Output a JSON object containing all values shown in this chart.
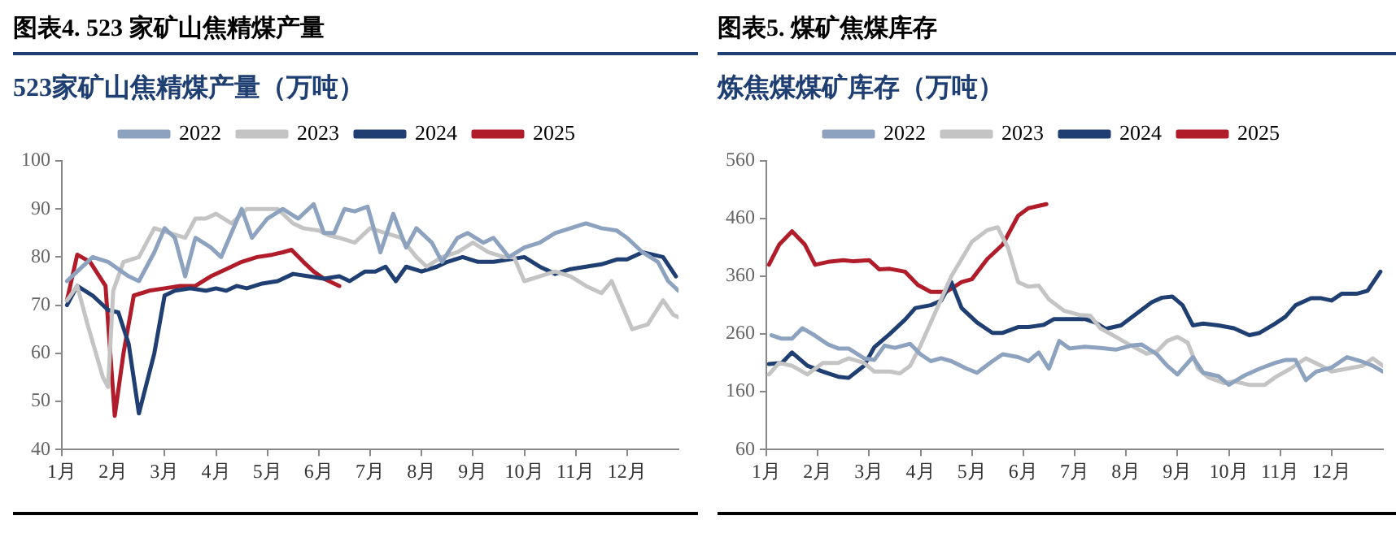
{
  "chart_data": [
    {
      "type": "line",
      "title": "图表4.  523 家矿山焦精煤产量",
      "subtitle": "523家矿山焦精煤产量（万吨）",
      "legend": "top",
      "grid": false,
      "marker": "none",
      "line_style": "solid",
      "xlim": [
        1,
        13
      ],
      "xticks": [
        {
          "value": 1,
          "label": "1月"
        },
        {
          "value": 2,
          "label": "2月"
        },
        {
          "value": 3,
          "label": "3月"
        },
        {
          "value": 4,
          "label": "4月"
        },
        {
          "value": 5,
          "label": "5月"
        },
        {
          "value": 6,
          "label": "6月"
        },
        {
          "value": 7,
          "label": "7月"
        },
        {
          "value": 8,
          "label": "8月"
        },
        {
          "value": 9,
          "label": "9月"
        },
        {
          "value": 10,
          "label": "10月"
        },
        {
          "value": 11,
          "label": "11月"
        },
        {
          "value": 12,
          "label": "12月"
        }
      ],
      "ylim": [
        40,
        100
      ],
      "yticks": [
        40,
        50,
        60,
        70,
        80,
        90,
        100
      ],
      "series": [
        {
          "name": "2022",
          "color": "#8da2bf",
          "x": [
            1.1,
            1.3,
            1.6,
            1.9,
            2.3,
            2.5,
            2.8,
            3.0,
            3.2,
            3.4,
            3.6,
            3.9,
            4.1,
            4.3,
            4.5,
            4.7,
            5.0,
            5.3,
            5.6,
            5.9,
            6.1,
            6.3,
            6.5,
            6.7,
            6.95,
            7.2,
            7.45,
            7.7,
            7.9,
            8.2,
            8.4,
            8.7,
            8.9,
            9.2,
            9.4,
            9.7,
            10.0,
            10.3,
            10.6,
            10.9,
            11.2,
            11.5,
            11.8,
            12.0,
            12.3,
            12.6,
            12.8,
            13.0
          ],
          "values": [
            75,
            77,
            80,
            79,
            76,
            75,
            81,
            86,
            84,
            76,
            84,
            82,
            80,
            85,
            90,
            84,
            88,
            90,
            88,
            91,
            85,
            85,
            90,
            89.5,
            90.5,
            81,
            89,
            82,
            86,
            83,
            79,
            84,
            85,
            83,
            84,
            80,
            82,
            83,
            85,
            86,
            87,
            86,
            85.5,
            84,
            81,
            79,
            75,
            73
          ]
        },
        {
          "name": "2023",
          "color": "#c4c4c4",
          "x": [
            1.1,
            1.3,
            1.5,
            1.8,
            1.9,
            2.0,
            2.2,
            2.5,
            2.8,
            3.1,
            3.4,
            3.6,
            3.8,
            4.0,
            4.3,
            4.6,
            4.9,
            5.2,
            5.5,
            5.7,
            6.0,
            6.2,
            6.4,
            6.7,
            7.0,
            7.3,
            7.6,
            7.9,
            8.1,
            8.4,
            8.7,
            9.0,
            9.3,
            9.6,
            9.8,
            10.0,
            10.3,
            10.6,
            10.9,
            11.2,
            11.5,
            11.7,
            11.9,
            12.1,
            12.4,
            12.7,
            12.9,
            13.0
          ],
          "values": [
            71,
            74,
            66,
            55,
            53,
            73,
            79,
            80,
            86,
            85,
            84,
            88,
            88,
            89,
            87,
            90,
            90,
            90,
            87,
            86,
            85.5,
            84.5,
            84,
            83,
            86,
            85,
            84,
            80,
            78,
            80,
            81,
            83,
            81,
            80,
            80,
            75,
            76,
            77,
            76,
            74,
            72.5,
            75,
            70,
            65,
            66,
            71,
            68,
            67.5
          ]
        },
        {
          "name": "2024",
          "color": "#1f3f73",
          "x": [
            1.1,
            1.3,
            1.6,
            1.9,
            2.1,
            2.3,
            2.5,
            2.8,
            3.0,
            3.2,
            3.5,
            3.8,
            4.0,
            4.2,
            4.4,
            4.6,
            4.9,
            5.2,
            5.5,
            5.8,
            6.1,
            6.4,
            6.6,
            6.9,
            7.1,
            7.3,
            7.5,
            7.7,
            8.0,
            8.3,
            8.5,
            8.8,
            9.1,
            9.4,
            9.7,
            10.0,
            10.3,
            10.6,
            10.9,
            11.2,
            11.5,
            11.8,
            12.0,
            12.3,
            12.5,
            12.7,
            12.95
          ],
          "values": [
            70,
            74,
            72,
            69,
            68.5,
            62,
            47.5,
            60,
            72,
            73,
            73.5,
            73,
            73.5,
            73,
            74,
            73.5,
            74.5,
            75,
            76.5,
            76,
            75.5,
            76,
            75,
            77,
            77,
            78,
            75,
            78,
            77,
            78,
            79,
            80,
            79,
            79,
            79.5,
            80,
            78,
            76.5,
            77.5,
            78,
            78.5,
            79.5,
            79.5,
            81,
            80.5,
            80,
            76
          ]
        },
        {
          "name": "2025",
          "color": "#b01c2a",
          "x": [
            1.1,
            1.3,
            1.55,
            1.85,
            2.03,
            2.2,
            2.4,
            2.7,
            3.0,
            3.3,
            3.6,
            3.9,
            4.2,
            4.5,
            4.8,
            5.1,
            5.3,
            5.47,
            5.7,
            5.9,
            6.1,
            6.4
          ],
          "values": [
            71,
            80.5,
            79,
            74,
            47,
            60,
            72,
            73,
            73.5,
            74,
            74,
            76,
            77.5,
            79,
            80,
            80.5,
            81,
            81.5,
            79,
            77,
            75.5,
            74
          ]
        }
      ]
    },
    {
      "type": "line",
      "title": "图表5.  煤矿焦煤库存",
      "subtitle": "炼焦煤煤矿库存（万吨）",
      "legend": "top",
      "grid": false,
      "marker": "none",
      "line_style": "solid",
      "xlim": [
        1,
        13
      ],
      "xticks": [
        {
          "value": 1,
          "label": "1月"
        },
        {
          "value": 2,
          "label": "2月"
        },
        {
          "value": 3,
          "label": "3月"
        },
        {
          "value": 4,
          "label": "4月"
        },
        {
          "value": 5,
          "label": "5月"
        },
        {
          "value": 6,
          "label": "6月"
        },
        {
          "value": 7,
          "label": "7月"
        },
        {
          "value": 8,
          "label": "8月"
        },
        {
          "value": 9,
          "label": "9月"
        },
        {
          "value": 10,
          "label": "10月"
        },
        {
          "value": 11,
          "label": "11月"
        },
        {
          "value": 12,
          "label": "12月"
        }
      ],
      "ylim": [
        60,
        560
      ],
      "yticks": [
        60,
        160,
        260,
        360,
        460,
        560
      ],
      "series": [
        {
          "name": "2022",
          "color": "#8da2bf",
          "x": [
            1.1,
            1.3,
            1.5,
            1.7,
            1.9,
            2.2,
            2.4,
            2.6,
            2.9,
            3.1,
            3.3,
            3.5,
            3.8,
            4.0,
            4.2,
            4.4,
            4.6,
            4.9,
            5.1,
            5.4,
            5.6,
            5.9,
            6.1,
            6.3,
            6.5,
            6.7,
            6.9,
            7.2,
            7.5,
            7.8,
            8.1,
            8.3,
            8.6,
            8.8,
            9.0,
            9.3,
            9.5,
            9.8,
            10.0,
            10.3,
            10.6,
            10.9,
            11.1,
            11.3,
            11.5,
            11.7,
            12.0,
            12.3,
            12.6,
            12.8,
            13.0
          ],
          "values": [
            258,
            252,
            252,
            270,
            260,
            242,
            235,
            235,
            218,
            215,
            240,
            236,
            243,
            225,
            213,
            218,
            213,
            200,
            193,
            213,
            225,
            220,
            213,
            228,
            200,
            248,
            235,
            238,
            236,
            233,
            240,
            242,
            225,
            205,
            190,
            220,
            193,
            187,
            172,
            188,
            200,
            210,
            215,
            215,
            180,
            195,
            202,
            220,
            212,
            205,
            195
          ]
        },
        {
          "name": "2023",
          "color": "#c4c4c4",
          "x": [
            1.05,
            1.25,
            1.5,
            1.8,
            2.1,
            2.4,
            2.6,
            2.9,
            3.1,
            3.4,
            3.6,
            3.8,
            4.0,
            4.2,
            4.4,
            4.6,
            4.8,
            5.0,
            5.3,
            5.5,
            5.7,
            5.9,
            6.1,
            6.3,
            6.5,
            6.8,
            7.1,
            7.3,
            7.5,
            7.8,
            8.1,
            8.4,
            8.6,
            8.8,
            9.0,
            9.2,
            9.4,
            9.6,
            9.9,
            10.1,
            10.4,
            10.7,
            10.9,
            11.2,
            11.5,
            11.8,
            12.0,
            12.3,
            12.6,
            12.8,
            13.0
          ],
          "values": [
            190,
            210,
            205,
            190,
            210,
            210,
            218,
            210,
            195,
            195,
            192,
            205,
            240,
            280,
            320,
            360,
            390,
            420,
            440,
            445,
            410,
            350,
            342,
            344,
            320,
            300,
            293,
            292,
            270,
            255,
            240,
            226,
            230,
            248,
            255,
            245,
            200,
            185,
            175,
            178,
            172,
            172,
            185,
            200,
            218,
            205,
            195,
            200,
            205,
            218,
            205
          ]
        },
        {
          "name": "2024",
          "color": "#1f3f73",
          "x": [
            1.05,
            1.3,
            1.5,
            1.8,
            2.1,
            2.4,
            2.6,
            2.9,
            3.1,
            3.4,
            3.7,
            3.9,
            4.2,
            4.4,
            4.6,
            4.8,
            5.1,
            5.4,
            5.6,
            5.9,
            6.1,
            6.4,
            6.6,
            6.9,
            7.2,
            7.4,
            7.6,
            7.9,
            8.2,
            8.5,
            8.7,
            8.9,
            9.1,
            9.3,
            9.5,
            9.8,
            10.1,
            10.4,
            10.6,
            10.9,
            11.1,
            11.3,
            11.6,
            11.8,
            12.0,
            12.2,
            12.5,
            12.7,
            12.95
          ],
          "values": [
            208,
            210,
            228,
            205,
            195,
            186,
            184,
            205,
            237,
            260,
            285,
            305,
            310,
            318,
            350,
            305,
            280,
            262,
            262,
            272,
            272,
            276,
            286,
            286,
            286,
            280,
            269,
            275,
            295,
            315,
            323,
            325,
            310,
            275,
            278,
            275,
            270,
            258,
            262,
            278,
            290,
            310,
            322,
            322,
            318,
            330,
            330,
            335,
            368
          ]
        },
        {
          "name": "2025",
          "color": "#b01c2a",
          "x": [
            1.05,
            1.25,
            1.5,
            1.75,
            1.95,
            2.2,
            2.5,
            2.7,
            3.0,
            3.2,
            3.4,
            3.7,
            3.95,
            4.2,
            4.5,
            4.8,
            5.0,
            5.3,
            5.6,
            5.9,
            6.1,
            6.45
          ],
          "values": [
            380,
            415,
            438,
            415,
            380,
            385,
            388,
            386,
            388,
            372,
            373,
            368,
            345,
            333,
            333,
            350,
            355,
            390,
            415,
            465,
            478,
            485
          ]
        }
      ]
    }
  ]
}
